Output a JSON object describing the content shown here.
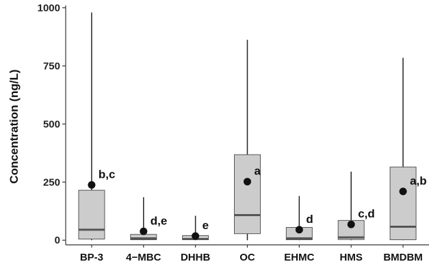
{
  "chart_data": {
    "type": "box",
    "title": "",
    "xlabel": "",
    "ylabel": "Concentration (ng/L)",
    "ylim": [
      -20,
      1010
    ],
    "yticks": [
      0,
      250,
      500,
      750,
      1000
    ],
    "grid": false,
    "categories": [
      "BP-3",
      "4−MBC",
      "DHHB",
      "OC",
      "EHMC",
      "HMS",
      "BMDBM"
    ],
    "boxes": [
      {
        "min": 0,
        "q1": 5,
        "median": 45,
        "q3": 215,
        "max": 980,
        "mean": 238,
        "label": "b,c"
      },
      {
        "min": 0,
        "q1": 2,
        "median": 8,
        "q3": 25,
        "max": 185,
        "mean": 38,
        "label": "d,e"
      },
      {
        "min": 0,
        "q1": 2,
        "median": 5,
        "q3": 20,
        "max": 105,
        "mean": 18,
        "label": "e"
      },
      {
        "min": 0,
        "q1": 28,
        "median": 108,
        "q3": 368,
        "max": 862,
        "mean": 252,
        "label": "a"
      },
      {
        "min": 0,
        "q1": 2,
        "median": 8,
        "q3": 55,
        "max": 190,
        "mean": 45,
        "label": "d"
      },
      {
        "min": 0,
        "q1": 3,
        "median": 12,
        "q3": 85,
        "max": 295,
        "mean": 68,
        "label": "c,d"
      },
      {
        "min": 0,
        "q1": 2,
        "median": 58,
        "q3": 315,
        "max": 785,
        "mean": 210,
        "label": "a,b"
      }
    ],
    "colors": {
      "box_fill": "#cccccc",
      "box_stroke": "#555555",
      "median": "#555555",
      "whisker": "#222222",
      "mean": "#111111"
    }
  }
}
